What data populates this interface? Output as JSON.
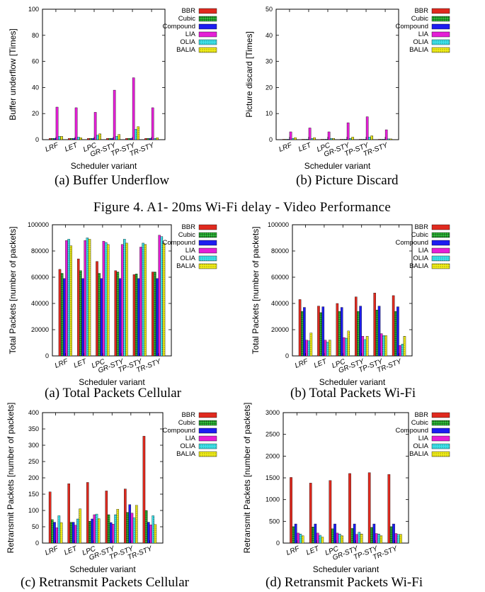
{
  "figure_caption": "Figure 4.  A1- 20ms Wi-Fi delay - Video Performance",
  "series_style": [
    {
      "color": "#e02a1f",
      "pattern": "solid"
    },
    {
      "color": "#2fbf3a",
      "pattern": "grid"
    },
    {
      "color": "#1d1df0",
      "pattern": "solid"
    },
    {
      "color": "#e41fd6",
      "pattern": "solid"
    },
    {
      "color": "#3ee6ee",
      "pattern": "dots"
    },
    {
      "color": "#f2ef1a",
      "pattern": "dots"
    }
  ],
  "chart_data": [
    {
      "type": "bar",
      "caption": "(a) Buffer Underflow",
      "xlabel": "Scheduler variant",
      "ylabel": "Buffer underflow [Times]",
      "ylim": [
        0,
        100
      ],
      "yticks": [
        0,
        20,
        40,
        60,
        80,
        100
      ],
      "categories": [
        "LRF",
        "LET",
        "LPC",
        "GR-STY",
        "TP-STY",
        "TR-STY"
      ],
      "series": [
        {
          "name": "BBR",
          "values": [
            1,
            1,
            1,
            1,
            1,
            1
          ]
        },
        {
          "name": "Cubic",
          "values": [
            1,
            1,
            1,
            1,
            1,
            1
          ]
        },
        {
          "name": "Compound",
          "values": [
            1,
            1,
            1,
            1,
            1,
            1
          ]
        },
        {
          "name": "LIA",
          "values": [
            25,
            24.5,
            21,
            38,
            47.5,
            24.5
          ]
        },
        {
          "name": "OLIA",
          "values": [
            2.5,
            2,
            3.5,
            2.5,
            8,
            1
          ]
        },
        {
          "name": "BALIA",
          "values": [
            2.5,
            1.5,
            4.5,
            4,
            10,
            1.5
          ]
        }
      ]
    },
    {
      "type": "bar",
      "caption": "(b) Picture Discard",
      "xlabel": "Scheduler variant",
      "ylabel": "Picture discard [Times]",
      "ylim": [
        0,
        50
      ],
      "yticks": [
        0,
        10,
        20,
        30,
        40,
        50
      ],
      "categories": [
        "LRF",
        "LET",
        "LPC",
        "GR-STY",
        "TP-STY",
        "TR-STY"
      ],
      "series": [
        {
          "name": "BBR",
          "values": [
            0,
            0,
            0,
            0,
            0,
            0
          ]
        },
        {
          "name": "Cubic",
          "values": [
            0,
            0,
            0,
            0,
            0,
            0
          ]
        },
        {
          "name": "Compound",
          "values": [
            0,
            0,
            0,
            0,
            0,
            0
          ]
        },
        {
          "name": "LIA",
          "values": [
            3,
            4.5,
            3,
            6.5,
            8.8,
            3.8
          ]
        },
        {
          "name": "OLIA",
          "values": [
            0.5,
            0.5,
            0.5,
            0.5,
            1,
            0.3
          ]
        },
        {
          "name": "BALIA",
          "values": [
            0.8,
            0.8,
            0.5,
            1,
            1.5,
            0.3
          ]
        }
      ]
    },
    {
      "type": "bar",
      "caption": "(a) Total Packets Cellular",
      "xlabel": "Scheduler variant",
      "ylabel": "Total Packets [number of packets]",
      "ylim": [
        0,
        100000
      ],
      "yticks": [
        0,
        20000,
        40000,
        60000,
        80000,
        100000
      ],
      "categories": [
        "LRF",
        "LET",
        "LPC",
        "GR-STY",
        "TP-STY",
        "TR-STY"
      ],
      "series": [
        {
          "name": "BBR",
          "values": [
            66000,
            74000,
            72000,
            65000,
            62000,
            64000
          ]
        },
        {
          "name": "Cubic",
          "values": [
            63000,
            65000,
            63000,
            64000,
            62500,
            64000
          ]
        },
        {
          "name": "Compound",
          "values": [
            59000,
            59000,
            59000,
            59000,
            59000,
            59000
          ]
        },
        {
          "name": "LIA",
          "values": [
            88000,
            88000,
            87500,
            85000,
            83000,
            92000
          ]
        },
        {
          "name": "OLIA",
          "values": [
            89000,
            90000,
            86500,
            89000,
            86000,
            91000
          ]
        },
        {
          "name": "BALIA",
          "values": [
            84000,
            89000,
            85000,
            86000,
            85000,
            86000
          ]
        }
      ]
    },
    {
      "type": "bar",
      "caption": "(b) Total Packets Wi-Fi",
      "xlabel": "Scheduler variant",
      "ylabel": "Total Packets [number of packets]",
      "ylim": [
        0,
        100000
      ],
      "yticks": [
        0,
        20000,
        40000,
        60000,
        80000,
        100000
      ],
      "categories": [
        "LRF",
        "LET",
        "LPC",
        "GR-STY",
        "TP-STY",
        "TR-STY"
      ],
      "series": [
        {
          "name": "BBR",
          "values": [
            43000,
            38000,
            40000,
            45000,
            48000,
            46000
          ]
        },
        {
          "name": "Cubic",
          "values": [
            34000,
            33000,
            34000,
            34000,
            35000,
            34000
          ]
        },
        {
          "name": "Compound",
          "values": [
            37000,
            37500,
            37000,
            38000,
            38000,
            37500
          ]
        },
        {
          "name": "LIA",
          "values": [
            12000,
            12000,
            14000,
            15000,
            17000,
            8000
          ]
        },
        {
          "name": "OLIA",
          "values": [
            11500,
            10500,
            13500,
            12500,
            15500,
            9000
          ]
        },
        {
          "name": "BALIA",
          "values": [
            17500,
            12000,
            19000,
            15000,
            15500,
            15000
          ]
        }
      ]
    },
    {
      "type": "bar",
      "caption": "(c) Retransmit Packets Cellular",
      "xlabel": "Scheduler variant",
      "ylabel": "Retransmit Packets [number of packets]",
      "ylim": [
        0,
        400
      ],
      "yticks": [
        0,
        50,
        100,
        150,
        200,
        250,
        300,
        350,
        400
      ],
      "categories": [
        "LRF",
        "LET",
        "LPC",
        "GR-STY",
        "TP-STY",
        "TR-STY"
      ],
      "series": [
        {
          "name": "BBR",
          "values": [
            157,
            182,
            186,
            160,
            166,
            328
          ]
        },
        {
          "name": "Cubic",
          "values": [
            72,
            64,
            67,
            87,
            94,
            100
          ]
        },
        {
          "name": "Compound",
          "values": [
            64,
            64,
            74,
            63,
            118,
            64
          ]
        },
        {
          "name": "LIA",
          "values": [
            47,
            55,
            87,
            58,
            92,
            56
          ]
        },
        {
          "name": "OLIA",
          "values": [
            84,
            74,
            89,
            87,
            78,
            84
          ]
        },
        {
          "name": "BALIA",
          "values": [
            63,
            105,
            75,
            104,
            116,
            57
          ]
        }
      ]
    },
    {
      "type": "bar",
      "caption": "(d) Retransmit Packets Wi-Fi",
      "xlabel": "Scheduler variant",
      "ylabel": "Retransmit Packets [number of packets]",
      "ylim": [
        0,
        3000
      ],
      "yticks": [
        0,
        500,
        1000,
        1500,
        2000,
        2500,
        3000
      ],
      "categories": [
        "LRF",
        "LET",
        "LPC",
        "GR-STY",
        "TP-STY",
        "TR-STY"
      ],
      "series": [
        {
          "name": "BBR",
          "values": [
            1510,
            1380,
            1440,
            1600,
            1620,
            1580
          ]
        },
        {
          "name": "Cubic",
          "values": [
            380,
            370,
            330,
            340,
            360,
            380
          ]
        },
        {
          "name": "Compound",
          "values": [
            440,
            440,
            440,
            440,
            440,
            440
          ]
        },
        {
          "name": "LIA",
          "values": [
            230,
            230,
            230,
            200,
            220,
            220
          ]
        },
        {
          "name": "OLIA",
          "values": [
            210,
            180,
            210,
            250,
            210,
            200
          ]
        },
        {
          "name": "BALIA",
          "values": [
            170,
            140,
            170,
            210,
            170,
            200
          ]
        }
      ]
    }
  ]
}
